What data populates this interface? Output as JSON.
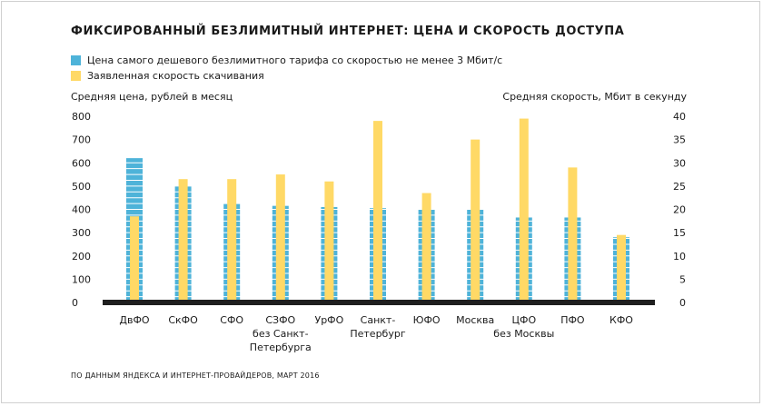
{
  "title": "ФИКСИРОВАННЫЙ БЕЗЛИМИТНЫЙ ИНТЕРНЕТ: ЦЕНА И СКОРОСТЬ ДОСТУПА",
  "source": "ПО ДАННЫМ ЯНДЕКСА И ИНТЕРНЕТ-ПРОВАЙДЕРОВ, МАРТ 2016",
  "colors": {
    "price": "#4eb3d9",
    "speed": "#ffd966",
    "baseline": "#1f1f1f"
  },
  "chart_data": {
    "type": "bar",
    "categories": [
      [
        "ДвФО"
      ],
      [
        "СкФО"
      ],
      [
        "СФО"
      ],
      [
        "СЗФО",
        "без Санкт-",
        "Петербурга"
      ],
      [
        "УрФО"
      ],
      [
        "Санкт-",
        "Петербург"
      ],
      [
        "ЮФО"
      ],
      [
        "Москва"
      ],
      [
        "ЦФО",
        "без Москвы"
      ],
      [
        "ПФО"
      ],
      [
        "КФО"
      ]
    ],
    "series": [
      {
        "name": "Цена самого дешевого безлимитного тарифа со скоростью не менее 3 Мбит/с",
        "axis": "left",
        "values": [
          620,
          500,
          425,
          415,
          410,
          405,
          400,
          400,
          365,
          365,
          280
        ]
      },
      {
        "name": "Заявленная скорость скачивания",
        "axis": "right",
        "values": [
          18.5,
          26.5,
          26.5,
          27.5,
          26,
          39,
          23.5,
          35,
          39.5,
          29,
          14.5
        ]
      }
    ],
    "ylabel": "Средняя цена, рублей в месяц",
    "y2label": "Средняя скорость, Мбит в секунду",
    "ylim": [
      0,
      800
    ],
    "y2lim": [
      0,
      40
    ],
    "yticks": [
      "0",
      "100",
      "200",
      "300",
      "400",
      "500",
      "600",
      "700",
      "800"
    ],
    "y2ticks": [
      "0",
      "5",
      "10",
      "15",
      "20",
      "25",
      "30",
      "35",
      "40"
    ],
    "grid": false,
    "legend": "top-left"
  }
}
